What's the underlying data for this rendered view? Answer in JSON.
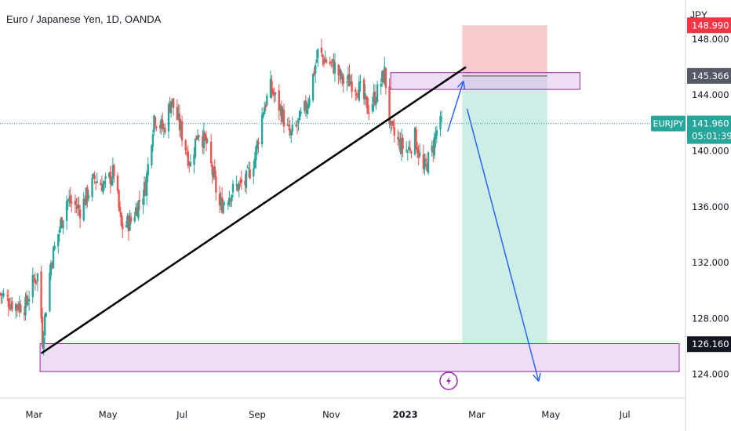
{
  "header": {
    "title": "Euro / Japanese Yen, 1D, OANDA",
    "currency": "JPY"
  },
  "price_tags": {
    "stop_value": "148.990",
    "entry_value": "145.366",
    "symbol": "EURJPY",
    "last_price": "141.960",
    "countdown": "05:01:39",
    "target_value": "126.160"
  },
  "colors": {
    "up": "#26a69a",
    "down": "#ef5350",
    "zone_fill": "#e6d0f2",
    "zone_stroke": "#9c27b0",
    "stop_fill": "#f8c9cc",
    "target_fill": "#cdeee6",
    "arrow": "#2962ff",
    "trendline": "#000000",
    "last_price_bg": "#26a69a",
    "target_tag_bg": "#131722",
    "entry_tag_bg": "#555a66",
    "stop_tag_bg": "#f23645"
  },
  "icons": {
    "flash": "lightning-bolt-icon"
  },
  "chart_data": {
    "type": "candlestick",
    "symbol": "EURJPY",
    "interval": "1D",
    "y_axis": {
      "ticks": [
        124,
        128,
        132,
        136,
        140,
        144,
        148
      ],
      "tick_labels": [
        "124.000",
        "128.000",
        "132.000",
        "136.000",
        "140.000",
        "144.000",
        "148.000"
      ],
      "ylim": [
        122.3,
        150.8
      ]
    },
    "x_axis": {
      "labels": [
        "Mar",
        "May",
        "Jul",
        "Sep",
        "Nov",
        "2023",
        "Mar",
        "May",
        "Jul"
      ]
    },
    "close_path": [
      [
        "2022-02-01",
        129.8
      ],
      [
        "2022-02-12",
        129.0
      ],
      [
        "2022-02-22",
        128.9
      ],
      [
        "2022-03-01",
        130.8
      ],
      [
        "2022-03-05",
        131.2
      ],
      [
        "2022-03-08",
        126.5
      ],
      [
        "2022-03-15",
        132.0
      ],
      [
        "2022-03-28",
        136.5
      ],
      [
        "2022-04-08",
        135.8
      ],
      [
        "2022-04-20",
        138.0
      ],
      [
        "2022-04-28",
        137.5
      ],
      [
        "2022-05-06",
        138.5
      ],
      [
        "2022-05-12",
        134.5
      ],
      [
        "2022-05-20",
        135.0
      ],
      [
        "2022-06-01",
        137.5
      ],
      [
        "2022-06-08",
        142.5
      ],
      [
        "2022-06-16",
        141.5
      ],
      [
        "2022-06-22",
        143.7
      ],
      [
        "2022-06-30",
        141.5
      ],
      [
        "2022-07-08",
        139.0
      ],
      [
        "2022-07-14",
        141.5
      ],
      [
        "2022-07-21",
        140.5
      ],
      [
        "2022-08-01",
        136.0
      ],
      [
        "2022-08-10",
        137.0
      ],
      [
        "2022-08-16",
        137.5
      ],
      [
        "2022-08-22",
        137.7
      ],
      [
        "2022-08-30",
        139.5
      ],
      [
        "2022-09-06",
        143.0
      ],
      [
        "2022-09-12",
        144.5
      ],
      [
        "2022-09-20",
        143.0
      ],
      [
        "2022-09-28",
        141.0
      ],
      [
        "2022-10-05",
        142.0
      ],
      [
        "2022-10-12",
        143.3
      ],
      [
        "2022-10-21",
        147.0
      ],
      [
        "2022-10-27",
        146.5
      ],
      [
        "2022-11-04",
        146.0
      ],
      [
        "2022-11-10",
        145.0
      ],
      [
        "2022-11-17",
        145.0
      ],
      [
        "2022-11-25",
        144.3
      ],
      [
        "2022-12-01",
        143.0
      ],
      [
        "2022-12-08",
        144.0
      ],
      [
        "2022-12-15",
        145.6
      ],
      [
        "2022-12-20",
        141.5
      ],
      [
        "2022-12-27",
        140.5
      ],
      [
        "2023-01-03",
        140.0
      ],
      [
        "2023-01-09",
        141.0
      ],
      [
        "2023-01-16",
        138.5
      ],
      [
        "2023-01-23",
        140.0
      ],
      [
        "2023-01-27",
        141.5
      ],
      [
        "2023-01-31",
        141.96
      ]
    ],
    "annotations": {
      "resistance_zone": [
        144.4,
        145.6
      ],
      "support_zone": [
        124.2,
        126.2
      ],
      "trendline": [
        [
          "2022-03-07",
          125.5
        ],
        [
          "2023-02-20",
          146.0
        ]
      ],
      "short_position": {
        "entry": 145.366,
        "stop": 148.99,
        "target": 126.16,
        "start": "2023-02-17",
        "end": "2023-04-28"
      },
      "arrows": [
        [
          [
            "2023-02-05",
            141.4
          ],
          [
            "2023-02-18",
            145.0
          ]
        ],
        [
          [
            "2023-02-21",
            143.0
          ],
          [
            "2023-04-21",
            123.5
          ]
        ]
      ]
    }
  }
}
